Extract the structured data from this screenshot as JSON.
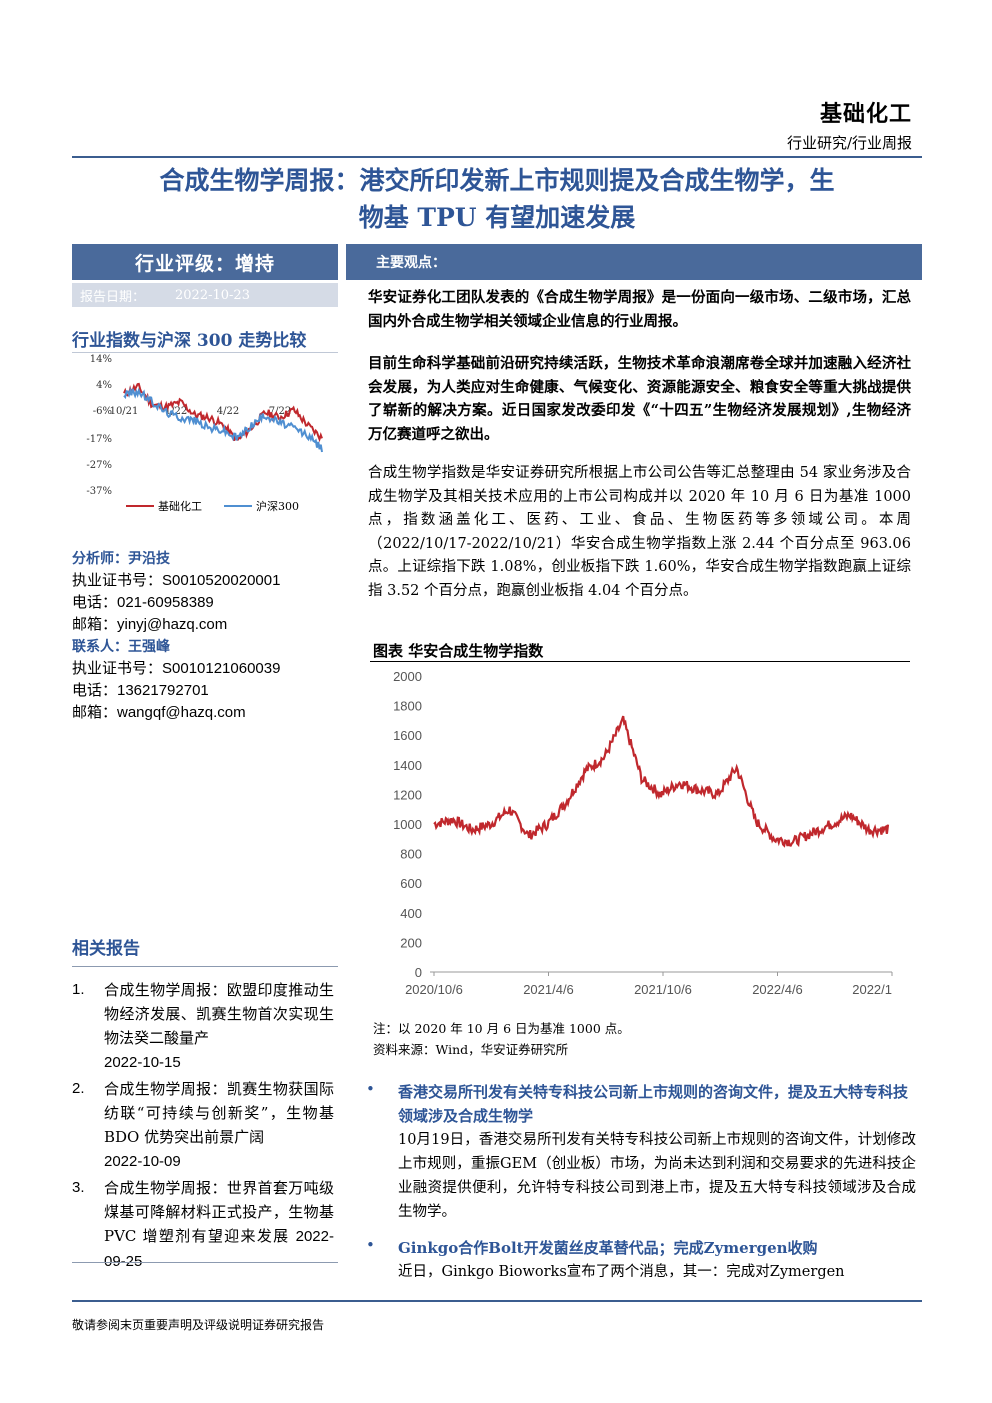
{
  "header": {
    "sector": "基础化工",
    "report_type": "行业研究/行业周报"
  },
  "title": {
    "line1": "合成生物学周报：港交所印发新上市规则提及合成生物学，生",
    "line2": "物基 TPU 有望加速发展"
  },
  "sidebar": {
    "rating": "行业评级：增持",
    "date_label": "报告日期：",
    "date_value": "2022-10-23",
    "index_compare_title": "行业指数与沪深 300 走势比较",
    "analyst_label": "分析师：尹沿技",
    "analyst_cert": "执业证书号：S0010520020001",
    "analyst_phone": "电话：021-60958389",
    "analyst_email": "邮箱：yinyj@hazq.com",
    "contact_label": "联系人：王强峰",
    "contact_cert": "执业证书号：S0010121060039",
    "contact_phone": "电话：13621792701",
    "contact_email": "邮箱：wangqf@hazq.com",
    "related_title": "相关报告",
    "related": [
      {
        "num": "1.",
        "text": "合成生物学周报：欧盟印度推动生物经济发展、凯赛生物首次实现生物法癸二酸量产",
        "date": "2022-10-15"
      },
      {
        "num": "2.",
        "text": "合成生物学周报：凯赛生物获国际纺联“可持续与创新奖”，生物基 BDO 优势突出前景广阔",
        "date": "2022-10-09"
      },
      {
        "num": "3.",
        "text": "合成生物学周报：世界首套万吨级煤基可降解材料正式投产，生物基 PVC 增塑剂有望迎来发展",
        "date": "2022-09-25"
      }
    ]
  },
  "main": {
    "key_points_label": "主要观点：",
    "para1": "华安证券化工团队发表的《合成生物学周报》是一份面向一级市场、二级市场，汇总国内外合成生物学相关领域企业信息的行业周报。",
    "para2": "目前生命科学基础前沿研究持续活跃，生物技术革命浪潮席卷全球并加速融入经济社会发展，为人类应对生命健康、气候变化、资源能源安全、粮食安全等重大挑战提供了崭新的解决方案。近日国家发改委印发《“十四五”生物经济发展规划》,生物经济万亿赛道呼之欲出。",
    "para3": "合成生物学指数是华安证券研究所根据上市公司公告等汇总整理由 54 家业务涉及合成生物学及其相关技术应用的上市公司构成并以 2020 年 10 月 6 日为基准 1000 点，指数涵盖化工、医药、工业、食品、生物医药等多领域公司。本周（2022/10/17-2022/10/21）华安合成生物学指数上涨 2.44 个百分点至 963.06 点。上证综指下跌 1.08%，创业板指下跌 1.60%，华安合成生物学指数跑赢上证综指 3.52 个百分点，跑赢创业板指 4.04 个百分点。",
    "figure_title": "图表 华安合成生物学指数",
    "figure_note": "注：以 2020 年 10 月 6 日为基准 1000 点。",
    "figure_source": "资料来源：Wind，华安证券研究所",
    "bullet1_title": "香港交易所刊发有关特专科技公司新上市规则的咨询文件，提及五大特专科技领域涉及合成生物学",
    "bullet1_body": "10月19日，香港交易所刊发有关特专科技公司新上市规则的咨询文件，计划修改上市规则，重振GEM（创业板）市场，为尚未达到利润和交易要求的先进科技企业融资提供便利，允许特专科技公司到港上市，提及五大特专科技领域涉及合成生物学。",
    "bullet2_title": "Ginkgo合作Bolt开发菌丝皮革替代品；完成Zymergen收购",
    "bullet2_body": "近日，Ginkgo Bioworks宣布了两个消息，其一：完成对Zymergen"
  },
  "footer": "敬请参阅末页重要声明及评级说明证券研究报告",
  "colors": {
    "brand_blue": "#2e5596",
    "bar_blue": "#4a6a9b",
    "series_red": "#c0282d",
    "series_blue": "#4f8fd1"
  },
  "chart_data": [
    {
      "type": "line",
      "title": "华安合成生物学指数",
      "x_tick_labels": [
        "2020/10/6",
        "2021/4/6",
        "2021/10/6",
        "2022/4/6",
        "2022/1"
      ],
      "y_tick_labels": [
        "0",
        "200",
        "400",
        "600",
        "800",
        "1000",
        "1200",
        "1400",
        "1600",
        "1800",
        "2000"
      ],
      "ylim": [
        0,
        2000
      ],
      "series": [
        {
          "x": [
            "2020-10",
            "2020-11",
            "2020-12",
            "2021-01",
            "2021-02",
            "2021-03",
            "2021-04",
            "2021-05",
            "2021-06",
            "2021-07",
            "2021-08",
            "2021-09",
            "2021-10",
            "2021-11",
            "2021-12",
            "2022-01",
            "2022-02",
            "2022-03",
            "2022-04",
            "2022-05",
            "2022-06",
            "2022-07",
            "2022-08",
            "2022-09",
            "2022-10"
          ],
          "values": [
            1000,
            1030,
            960,
            1000,
            1100,
            920,
            1000,
            1150,
            1360,
            1450,
            1700,
            1300,
            1200,
            1280,
            1230,
            1200,
            1380,
            1020,
            900,
            880,
            940,
            1000,
            1060,
            960,
            963
          ]
        }
      ]
    },
    {
      "type": "line",
      "title": "行业指数与沪深 300 走势比较",
      "x_tick_labels": [
        "10/21",
        "1/22",
        "4/22",
        "7/22"
      ],
      "y_tick_labels": [
        "14%",
        "4%",
        "-6%",
        "-17%",
        "-27%",
        "-37%"
      ],
      "ylim": [
        -37,
        14
      ],
      "series": [
        {
          "name": "基础化工",
          "values": [
            0,
            3,
            -4,
            -5,
            -3,
            -8,
            -9,
            -12,
            -18,
            -13,
            -7,
            -9,
            -6,
            -12,
            -17
          ]
        },
        {
          "name": "沪深300",
          "values": [
            0,
            1,
            -3,
            -7,
            -9,
            -10,
            -13,
            -14,
            -17,
            -12,
            -8,
            -11,
            -13,
            -16,
            -21
          ]
        }
      ]
    }
  ]
}
